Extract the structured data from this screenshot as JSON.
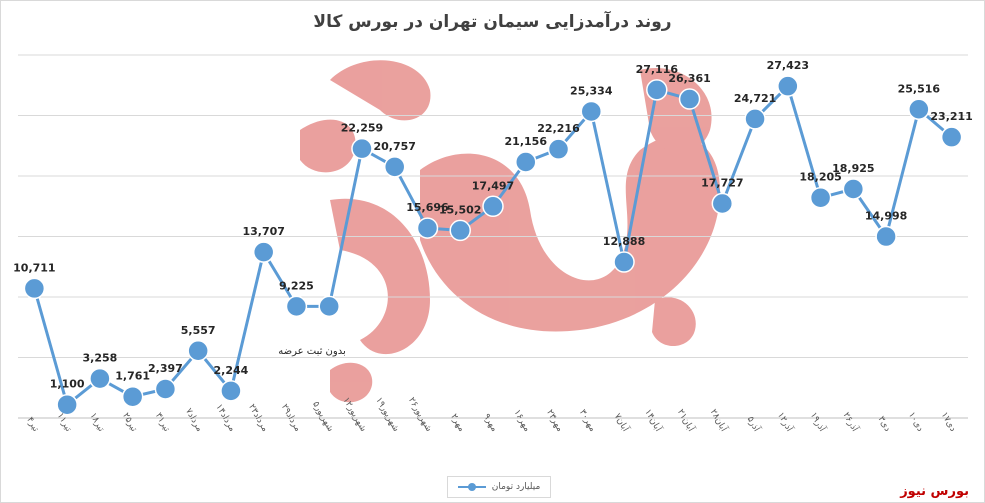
{
  "chart_data": {
    "type": "line",
    "title": "روند درآمدزایی سیمان تهران در بورس کالا",
    "xlabel": "",
    "ylabel": "",
    "ylim": [
      0,
      30000
    ],
    "grid": true,
    "legend_position": "bottom",
    "categories": [
      "۴تیر",
      "۱۱تیر",
      "۱۸تیر",
      "۲۵تیر",
      "۳۱تیر",
      "۷مرداد",
      "۱۴مرداد",
      "۲۳مرداد",
      "۲۹مرداد",
      "۵شهریور",
      "۱۲شهریور",
      "۱۹شهریور",
      "۲۶شهریور",
      "۲مهر",
      "۹مهر",
      "۱۶مهر",
      "۲۳مهر",
      "۳۰مهر",
      "۷آبان",
      "۱۴آبان",
      "۲۱آبان",
      "۲۸آبان",
      "۵آذر",
      "۱۲آذر",
      "۱۹آذر",
      "۲۶آذر",
      "۳دی",
      "۱۰دی",
      "۱۷دی"
    ],
    "series": [
      {
        "name": "میلیارد تومان",
        "values": [
          10711,
          1100,
          3258,
          1761,
          2397,
          5557,
          2244,
          13707,
          9225,
          9225,
          22259,
          20757,
          15696,
          15502,
          17497,
          21156,
          22216,
          25334,
          12888,
          27116,
          26361,
          17727,
          24721,
          27423,
          18205,
          18925,
          14998,
          25516,
          23211
        ],
        "labels": [
          "10,711",
          "1,100",
          "3,258",
          "1,761",
          "2,397",
          "5,557",
          "2,244",
          "13,707",
          "9,225",
          "",
          "22,259",
          "20,757",
          "15,696",
          "15,502",
          "17,497",
          "21,156",
          "22,216",
          "25,334",
          "12,888",
          "27,116",
          "26,361",
          "17,727",
          "24,721",
          "27,423",
          "18,205",
          "18,925",
          "14,998",
          "25,516",
          "23,211"
        ]
      }
    ],
    "annotations": [
      {
        "text": "بدون ثبت عرضه"
      }
    ],
    "colors": {
      "line": "#5b9bd5",
      "grid": "#d9d9d9",
      "label": "#262626"
    }
  },
  "legend": {
    "label": "میلیارد تومان"
  },
  "brand": {
    "text": "بورس نیوز"
  }
}
